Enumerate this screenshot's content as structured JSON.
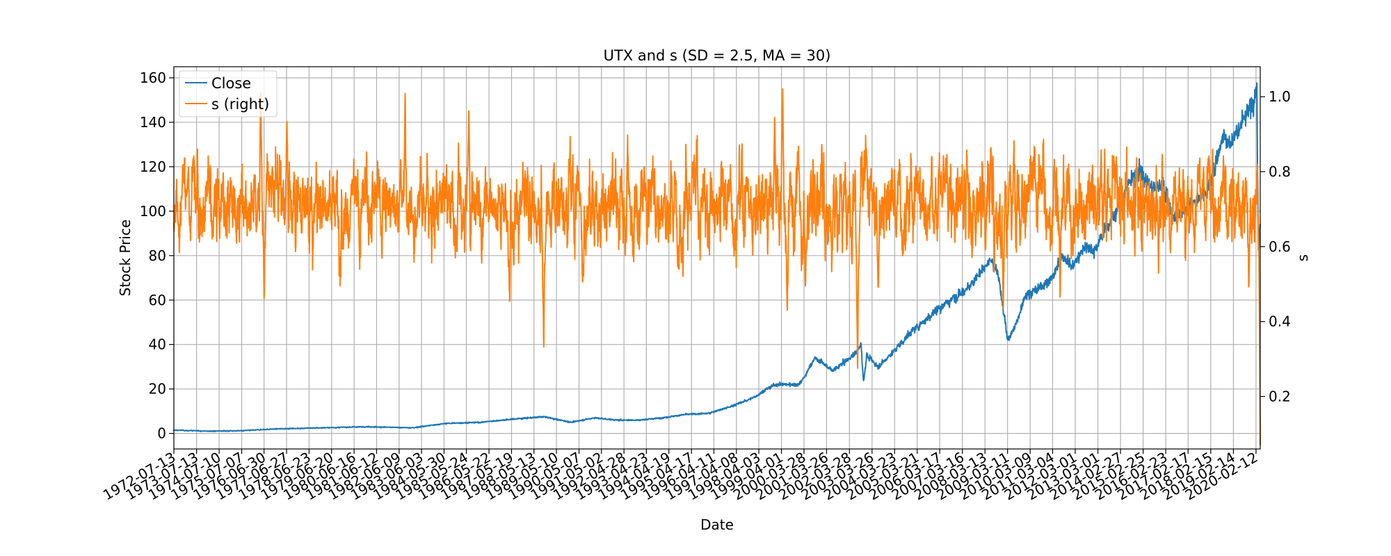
{
  "chart_data": {
    "type": "line",
    "title": "UTX and s (SD = 2.5, MA = 30)",
    "xlabel": "Date",
    "ylabel": "Stock Price",
    "ylabel_right": "s",
    "x_range": [
      "1972-07-13",
      "2020-04-20"
    ],
    "ylim": [
      -7,
      165
    ],
    "ylim_right": [
      0.06,
      1.08
    ],
    "y_ticks": [
      0,
      20,
      40,
      60,
      80,
      100,
      120,
      140,
      160
    ],
    "y_ticks_right": [
      0.2,
      0.4,
      0.6,
      0.8,
      1.0
    ],
    "x_tick_labels": [
      "1972-07-13",
      "1973-07-13",
      "1974-07-10",
      "1975-07-07",
      "1976-06-30",
      "1977-06-27",
      "1978-06-23",
      "1979-06-20",
      "1980-06-16",
      "1981-06-12",
      "1982-06-09",
      "1983-06-03",
      "1984-05-30",
      "1985-05-24",
      "1986-05-22",
      "1987-05-19",
      "1988-05-13",
      "1989-05-10",
      "1990-05-07",
      "1991-05-02",
      "1992-04-28",
      "1993-04-23",
      "1994-04-19",
      "1995-04-17",
      "1996-04-11",
      "1997-04-08",
      "1998-04-03",
      "1999-04-01",
      "2000-03-28",
      "2001-03-26",
      "2002-03-28",
      "2003-03-26",
      "2004-03-23",
      "2005-03-21",
      "2006-03-17",
      "2007-03-16",
      "2008-03-13",
      "2009-03-11",
      "2010-03-09",
      "2011-03-04",
      "2012-03-01",
      "2013-03-01",
      "2014-02-27",
      "2015-02-25",
      "2016-02-23",
      "2017-02-17",
      "2018-02-15",
      "2019-02-14",
      "2020-02-12"
    ],
    "grid": true,
    "legend_position": "top-left",
    "series": [
      {
        "name": "Close",
        "axis": "left",
        "color": "#1f77b4",
        "x": [
          1972.5,
          1974.0,
          1975.5,
          1977.0,
          1979.0,
          1981.0,
          1983.0,
          1984.5,
          1986.0,
          1987.5,
          1988.8,
          1990.0,
          1991.0,
          1992.0,
          1993.0,
          1994.0,
          1995.0,
          1996.0,
          1997.0,
          1998.0,
          1998.6,
          1999.0,
          2000.0,
          2000.3,
          2000.7,
          2001.0,
          2001.5,
          2002.0,
          2002.5,
          2002.75,
          2002.85,
          2003.0,
          2003.5,
          2004.0,
          2005.0,
          2006.0,
          2007.0,
          2007.5,
          2008.0,
          2008.5,
          2008.8,
          2009.0,
          2009.2,
          2009.5,
          2010.0,
          2011.0,
          2011.6,
          2012.0,
          2012.6,
          2013.0,
          2013.5,
          2014.0,
          2014.5,
          2015.0,
          2015.5,
          2016.0,
          2016.5,
          2017.0,
          2017.5,
          2018.0,
          2018.3,
          2018.7,
          2019.0,
          2019.5,
          2020.0,
          2020.15,
          2020.22,
          2020.3
        ],
        "y": [
          1.5,
          1.0,
          1.2,
          2.0,
          2.5,
          3.0,
          2.5,
          4.5,
          5.0,
          6.5,
          7.5,
          5.0,
          7.0,
          6.0,
          6.0,
          7.0,
          8.5,
          9.0,
          12.0,
          16.0,
          20.0,
          22.0,
          22.0,
          26.0,
          34.0,
          32.0,
          28.0,
          32.0,
          36.0,
          40.0,
          23.0,
          35.0,
          30.0,
          35.0,
          46.0,
          55.0,
          62.0,
          66.0,
          72.0,
          78.0,
          70.0,
          55.0,
          42.0,
          48.0,
          62.0,
          68.0,
          80.0,
          75.0,
          84.0,
          82.0,
          92.0,
          100.0,
          112.0,
          118.0,
          110.0,
          112.0,
          97.0,
          100.0,
          105.0,
          110.0,
          120.0,
          135.0,
          130.0,
          140.0,
          150.0,
          155.0,
          80.0,
          95.0
        ]
      },
      {
        "name": "s (right)",
        "axis": "right",
        "color": "#ff7f0e",
        "base": 0.72,
        "x": [
          1976.35,
          1976.5,
          1977.5,
          1982.7,
          1985.5,
          1988.75,
          1988.8,
          1988.85,
          1990.5,
          1998.95,
          1999.3,
          1999.5,
          2000.3,
          2002.55,
          2002.6,
          2002.65,
          2003.5,
          2009.0,
          2011.5,
          2019.8,
          2020.25,
          2020.3
        ],
        "y": [
          1.02,
          0.45,
          0.95,
          1.02,
          0.98,
          0.52,
          0.28,
          0.55,
          0.5,
          0.95,
          1.03,
          0.42,
          0.48,
          0.55,
          0.22,
          0.55,
          0.48,
          0.42,
          0.45,
          0.48,
          0.6,
          0.07
        ]
      }
    ]
  }
}
